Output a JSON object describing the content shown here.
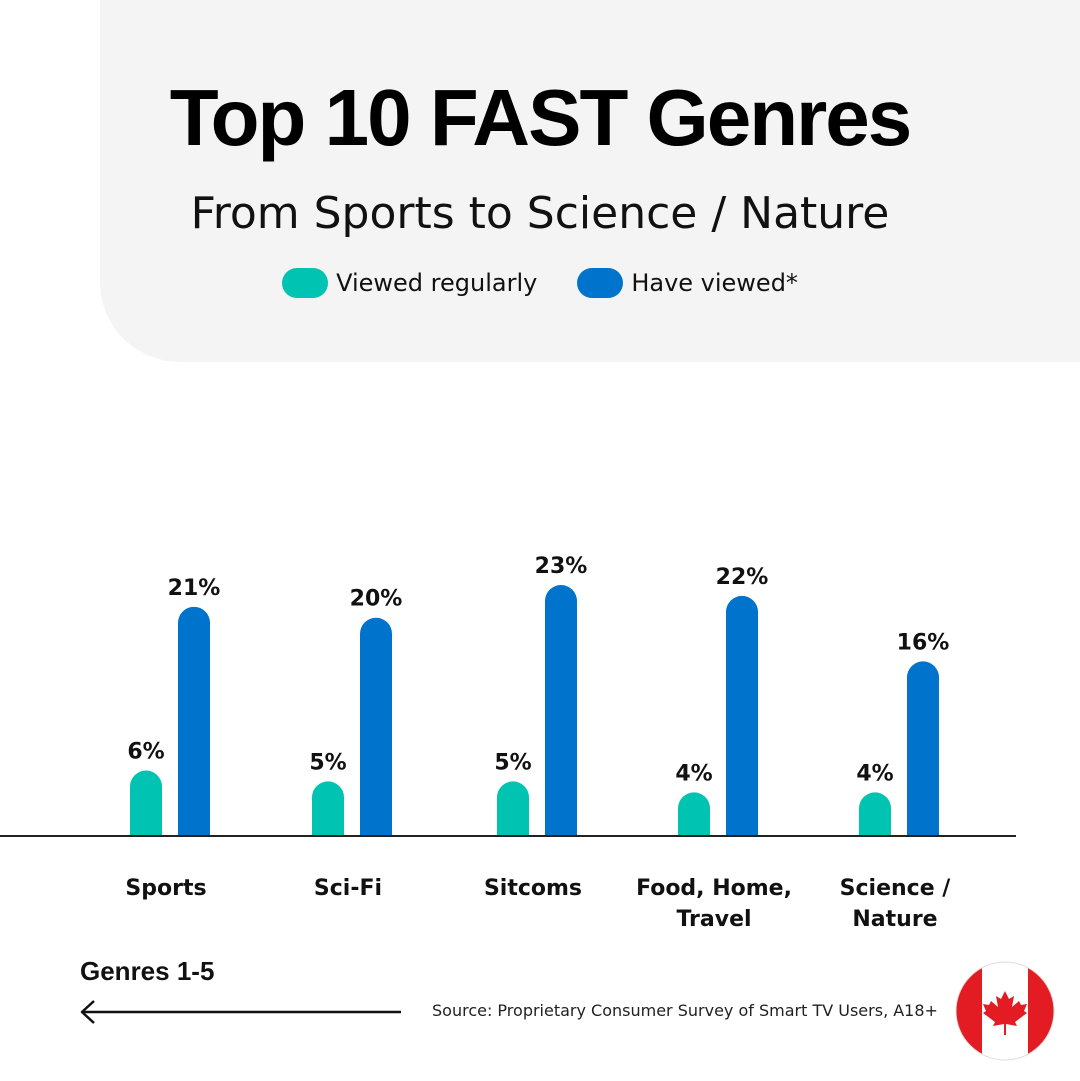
{
  "header": {
    "title": "Top 10 FAST Genres",
    "subtitle": "From Sports to Science / Nature"
  },
  "legend": [
    {
      "label": "Viewed regularly",
      "color": "#00c3b1"
    },
    {
      "label": "Have viewed*",
      "color": "#0073cc"
    }
  ],
  "chart_data": {
    "type": "bar",
    "title": "Top 10 FAST Genres",
    "subtitle": "From Sports to Science / Nature",
    "categories": [
      [
        "Sports"
      ],
      [
        "Sci-Fi"
      ],
      [
        "Sitcoms"
      ],
      [
        "Food, Home,",
        "Travel"
      ],
      [
        "Science /",
        "Nature"
      ]
    ],
    "series": [
      {
        "name": "Viewed regularly",
        "color": "#00c3b1",
        "values": [
          6,
          5,
          5,
          4,
          4
        ],
        "labels": [
          "6%",
          "5%",
          "5%",
          "4%",
          "4%"
        ]
      },
      {
        "name": "Have viewed*",
        "color": "#0073cc",
        "values": [
          21,
          20,
          23,
          22,
          16
        ],
        "labels": [
          "21%",
          "20%",
          "23%",
          "22%",
          "16%"
        ]
      }
    ],
    "unit": "%",
    "ylim": [
      0,
      23
    ],
    "grid": false,
    "legend_position": "top"
  },
  "footer": {
    "section_label": "Genres 1-5",
    "source": "Source: Proprietary Consumer Survey of Smart TV Users, A18+",
    "flag": "canada-flag-icon"
  }
}
